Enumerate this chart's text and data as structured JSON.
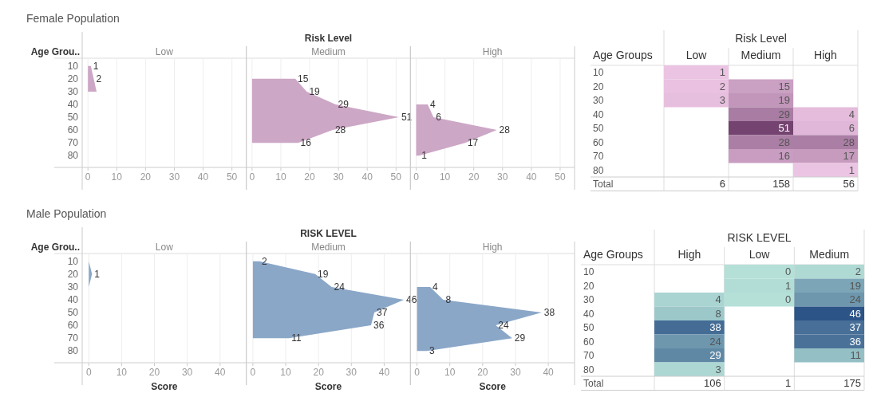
{
  "chart_data": [
    {
      "type": "area",
      "orientation": "horizontal",
      "title": "Female Population",
      "ylabel": "Age Grou..",
      "categories": [
        "10",
        "20",
        "30",
        "40",
        "50",
        "60",
        "70",
        "80"
      ],
      "xlim": [
        -2,
        55
      ],
      "xticks": [
        0,
        10,
        20,
        30,
        40,
        50
      ],
      "grid": "x",
      "series": [
        {
          "name": "Low",
          "color": "#cda7c6",
          "values": [
            1,
            2,
            3,
            null,
            null,
            null,
            null,
            null
          ],
          "value_labels": [
            "1",
            "2",
            null,
            null,
            null,
            null,
            null,
            null
          ]
        }
      ]
    },
    {
      "type": "area",
      "orientation": "horizontal",
      "legend_title": "Risk Level",
      "categories": [
        "10",
        "20",
        "30",
        "40",
        "50",
        "60",
        "70",
        "80"
      ],
      "tick_labels": "x",
      "xlim": [
        -2,
        55
      ],
      "xticks": [
        0,
        10,
        20,
        30,
        40,
        50
      ],
      "grid": "x",
      "series": [
        {
          "name": "Medium",
          "color": "#cda7c6",
          "values": [
            null,
            15,
            19,
            29,
            51,
            28,
            16,
            null
          ],
          "value_labels": [
            null,
            "15",
            "19",
            "29",
            "51",
            "28",
            "16",
            null
          ]
        }
      ]
    },
    {
      "type": "area",
      "orientation": "horizontal",
      "categories": [
        "10",
        "20",
        "30",
        "40",
        "50",
        "60",
        "70",
        "80"
      ],
      "tick_labels": "x",
      "xlim": [
        -2,
        55
      ],
      "xticks": [
        0,
        10,
        20,
        30,
        40,
        50
      ],
      "grid": "x",
      "series": [
        {
          "name": "High",
          "color": "#cda7c6",
          "values": [
            null,
            null,
            null,
            4,
            6,
            28,
            17,
            1
          ],
          "value_labels": [
            null,
            null,
            null,
            "4",
            "6",
            "28",
            "17",
            "1"
          ]
        }
      ]
    },
    {
      "type": "heatmap",
      "xlabel": "Risk Level",
      "ylabel": "Age Groups",
      "categories": [
        "Low",
        "Medium",
        "High"
      ],
      "y_categories": [
        "10",
        "20",
        "30",
        "40",
        "50",
        "60",
        "70",
        "80"
      ],
      "colors": [
        "#ecc4e3",
        "#744370"
      ],
      "data_labels": true,
      "cells": [
        [
          1,
          null,
          null
        ],
        [
          2,
          15,
          null
        ],
        [
          3,
          19,
          null
        ],
        [
          null,
          29,
          4
        ],
        [
          null,
          51,
          6
        ],
        [
          null,
          28,
          28
        ],
        [
          null,
          16,
          17
        ],
        [
          null,
          null,
          1
        ]
      ],
      "totals": [
        "6",
        "158",
        "56"
      ],
      "annotations": [
        "Total"
      ]
    },
    {
      "type": "area",
      "orientation": "horizontal",
      "title": "Male Population",
      "ylabel": "Age Grou..",
      "xlabel": "Score",
      "categories": [
        "10",
        "20",
        "30",
        "40",
        "50",
        "60",
        "70",
        "80"
      ],
      "xlim": [
        -2,
        48
      ],
      "xticks": [
        0,
        10,
        20,
        30,
        40
      ],
      "grid": "x",
      "series": [
        {
          "name": "Low",
          "color": "#8aa7c8",
          "values": [
            0,
            1,
            0,
            null,
            null,
            null,
            null,
            null
          ],
          "value_labels": [
            null,
            "1",
            null,
            null,
            null,
            null,
            null,
            null
          ]
        }
      ]
    },
    {
      "type": "area",
      "orientation": "horizontal",
      "legend_title": "RISK LEVEL",
      "xlabel": "Score",
      "categories": [
        "10",
        "20",
        "30",
        "40",
        "50",
        "60",
        "70",
        "80"
      ],
      "tick_labels": "x",
      "xlim": [
        -2,
        48
      ],
      "xticks": [
        0,
        10,
        20,
        30,
        40
      ],
      "grid": "x",
      "series": [
        {
          "name": "Medium",
          "color": "#8aa7c8",
          "values": [
            2,
            19,
            24,
            46,
            37,
            36,
            11,
            null
          ],
          "value_labels": [
            "2",
            "19",
            "24",
            "46",
            "37",
            "36",
            "11",
            null
          ]
        }
      ]
    },
    {
      "type": "area",
      "orientation": "horizontal",
      "xlabel": "Score",
      "categories": [
        "10",
        "20",
        "30",
        "40",
        "50",
        "60",
        "70",
        "80"
      ],
      "tick_labels": "x",
      "xlim": [
        -2,
        48
      ],
      "xticks": [
        0,
        10,
        20,
        30,
        40
      ],
      "grid": "x",
      "series": [
        {
          "name": "High",
          "color": "#8aa7c8",
          "values": [
            null,
            null,
            4,
            8,
            38,
            24,
            29,
            3
          ],
          "value_labels": [
            null,
            null,
            "4",
            "8",
            "38",
            "24",
            "29",
            "3"
          ]
        }
      ]
    },
    {
      "type": "heatmap",
      "xlabel": "RISK LEVEL",
      "ylabel": "Age Groups",
      "categories": [
        "High",
        "Low",
        "Medium"
      ],
      "y_categories": [
        "10",
        "20",
        "30",
        "40",
        "50",
        "60",
        "70",
        "80"
      ],
      "colors": [
        "#b5e0d8",
        "#2c5487"
      ],
      "data_labels": true,
      "cells": [
        [
          null,
          0,
          2
        ],
        [
          null,
          1,
          19
        ],
        [
          4,
          0,
          24
        ],
        [
          8,
          null,
          46
        ],
        [
          38,
          null,
          37
        ],
        [
          24,
          null,
          36
        ],
        [
          29,
          null,
          11
        ],
        [
          3,
          null,
          null
        ]
      ],
      "totals": [
        "106",
        "1",
        "175"
      ],
      "annotations": [
        "Total"
      ]
    }
  ]
}
